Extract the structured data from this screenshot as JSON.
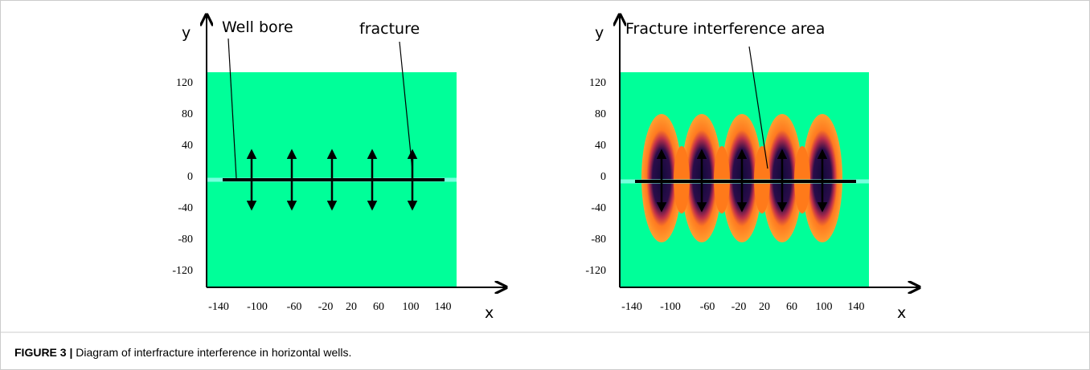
{
  "panels": [
    {
      "y_label": "y",
      "x_label": "x",
      "yticks": [
        "120",
        "80",
        "40",
        "0",
        "-40",
        "-80",
        "-120"
      ],
      "xticks": [
        "-140",
        "-100",
        "-60",
        "-20",
        "20",
        "60",
        "100",
        "140"
      ],
      "annotations": [
        "Well bore",
        "fracture"
      ]
    },
    {
      "y_label": "y",
      "x_label": "x",
      "yticks": [
        "120",
        "80",
        "40",
        "0",
        "-40",
        "-80",
        "-120"
      ],
      "xticks": [
        "-140",
        "-100",
        "-60",
        "-20",
        "20",
        "60",
        "100",
        "140"
      ],
      "annotations": [
        "Fracture  interference area"
      ]
    }
  ],
  "caption": {
    "label": "FIGURE 3 |",
    "text": "Diagram of interfracture interference in horizontal wells."
  }
}
